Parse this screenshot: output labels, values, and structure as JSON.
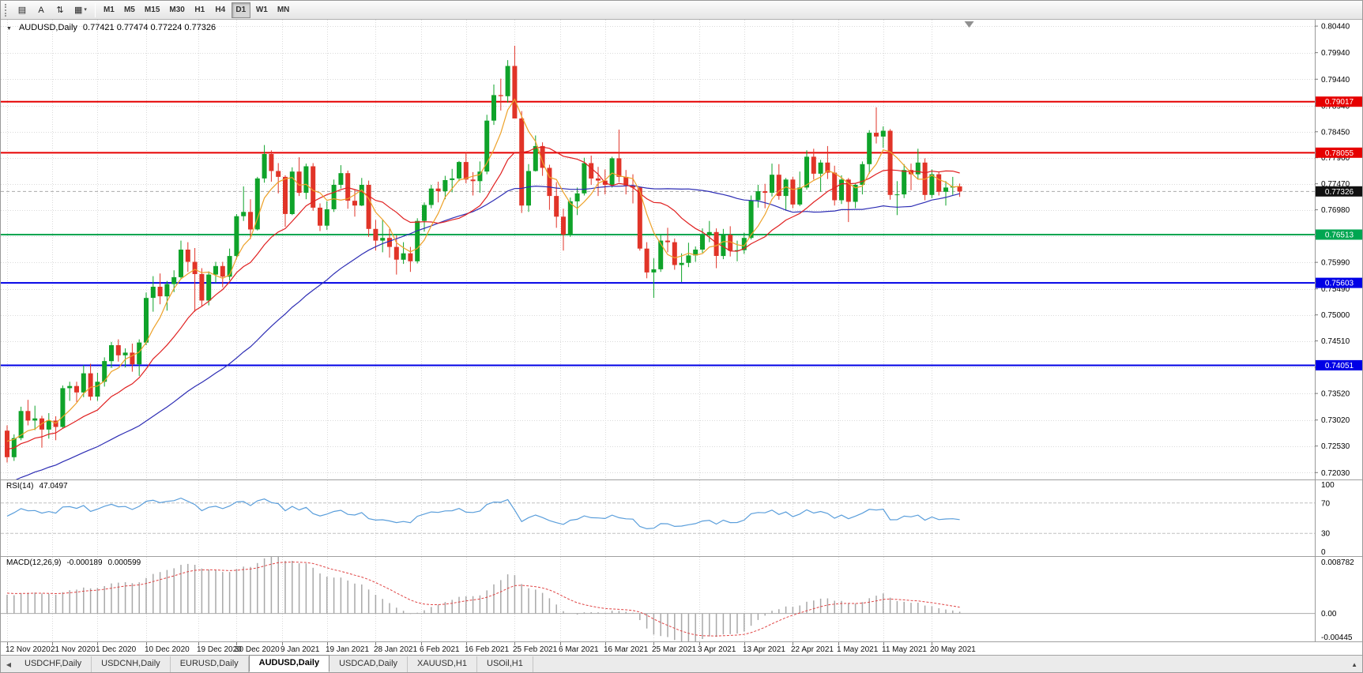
{
  "toolbar": {
    "tool_buttons": [
      {
        "name": "chart-window-icon",
        "glyph": "▤"
      },
      {
        "name": "text-annotation-tool",
        "glyph": "A"
      },
      {
        "name": "chart-shift-tool-icon",
        "glyph": "⇅"
      },
      {
        "name": "indicators-menu-icon",
        "glyph": "▦",
        "caret": "▾"
      }
    ],
    "timeframes": [
      "M1",
      "M5",
      "M15",
      "M30",
      "H1",
      "H4",
      "D1",
      "W1",
      "MN"
    ],
    "active_timeframe": "D1"
  },
  "chart_header": {
    "symbol": "AUDUSD,Daily",
    "ohlc": "0.77421 0.77474 0.77224 0.77326",
    "dropdown_glyph": "▼"
  },
  "rsi_header": {
    "name": "RSI(14)",
    "value": "47.0497"
  },
  "macd_header": {
    "name": "MACD(12,26,9)",
    "value_main": "-0.000189",
    "value_signal": "0.000599"
  },
  "tabs": {
    "scroll_left_glyph": "◀",
    "list_glyph": "▲",
    "items": [
      "USDCHF,Daily",
      "USDCNH,Daily",
      "EURUSD,Daily",
      "AUDUSD,Daily",
      "USDCAD,Daily",
      "XAUUSD,H1",
      "USOil,H1"
    ],
    "active": "AUDUSD,Daily"
  },
  "chart_data": {
    "type": "candlestick",
    "symbol": "AUDUSD",
    "timeframe": "Daily",
    "last_quote": {
      "open": 0.77421,
      "high": 0.77474,
      "low": 0.77224,
      "close": 0.77326
    },
    "ylim": [
      0.719,
      0.8056
    ],
    "colors": {
      "bull": "#0fa32a",
      "bear": "#e13428",
      "grid": "#dadada",
      "rsi": "#5a9edb",
      "macd_bar": "#a8a8a8",
      "macd_signal": "#e04444"
    },
    "y_axis_ticks": [
      "0.80440",
      "0.79940",
      "0.79440",
      "0.78940",
      "0.78450",
      "0.77960",
      "0.77470",
      "0.76980",
      "0.76480",
      "0.75990",
      "0.75490",
      "0.75000",
      "0.74510",
      "0.74010",
      "0.73520",
      "0.73020",
      "0.72530",
      "0.72030"
    ],
    "horizontal_lines": [
      {
        "price": 0.79017,
        "label": "0.79017",
        "color": "#e60000"
      },
      {
        "price": 0.78055,
        "label": "0.78055",
        "color": "#e60000"
      },
      {
        "price": 0.76513,
        "label": "0.76513",
        "color": "#00a651"
      },
      {
        "price": 0.75603,
        "label": "0.75603",
        "color": "#0000e6"
      },
      {
        "price": 0.74051,
        "label": "0.74051",
        "color": "#0000e6"
      }
    ],
    "current_price": {
      "price": 0.77326,
      "label": "0.77326",
      "box_color": "#111111"
    },
    "moving_averages": [
      {
        "name": "ma-fast",
        "type": "sma",
        "period": 5,
        "color": "#eda128"
      },
      {
        "name": "ma-medium",
        "type": "sma",
        "period": 14,
        "color": "#e02020"
      },
      {
        "name": "ma-slow",
        "type": "sma",
        "period": 40,
        "color": "#2d2db4"
      }
    ],
    "rsi": {
      "period": 14,
      "current": "47.0497",
      "levels": [
        "100",
        "70",
        "30",
        "0"
      ],
      "dashed_levels": [
        70,
        30
      ]
    },
    "macd": {
      "fast": 12,
      "slow": 26,
      "signal": 9,
      "axis_labels": [
        "0.008782",
        "0.00",
        "-0.00445"
      ],
      "range": [
        -0.00445,
        0.008782
      ]
    },
    "date_labels": [
      {
        "text": "12 Nov 2020",
        "i": 0
      },
      {
        "text": "21 Nov 2020",
        "i": 6.5
      },
      {
        "text": "1 Dec 2020",
        "i": 13
      },
      {
        "text": "10 Dec 2020",
        "i": 20
      },
      {
        "text": "19 Dec 2020",
        "i": 27.5
      },
      {
        "text": "30 Dec 2020",
        "i": 33
      },
      {
        "text": "9 Jan 2021",
        "i": 39.5
      },
      {
        "text": "19 Jan 2021",
        "i": 46
      },
      {
        "text": "28 Jan 2021",
        "i": 53
      },
      {
        "text": "6 Feb 2021",
        "i": 59.5
      },
      {
        "text": "16 Feb 2021",
        "i": 66
      },
      {
        "text": "25 Feb 2021",
        "i": 73
      },
      {
        "text": "6 Mar 2021",
        "i": 79.5
      },
      {
        "text": "16 Mar 2021",
        "i": 86
      },
      {
        "text": "25 Mar 2021",
        "i": 93
      },
      {
        "text": "3 Apr 2021",
        "i": 99.5
      },
      {
        "text": "13 Apr 2021",
        "i": 106
      },
      {
        "text": "22 Apr 2021",
        "i": 113
      },
      {
        "text": "1 May 2021",
        "i": 119.5
      },
      {
        "text": "11 May 2021",
        "i": 126
      },
      {
        "text": "20 May 2021",
        "i": 133
      }
    ],
    "candles": [
      [
        0.7282,
        0.7292,
        0.7222,
        0.7232
      ],
      [
        0.7232,
        0.7275,
        0.7225,
        0.7268
      ],
      [
        0.7268,
        0.7327,
        0.7264,
        0.7319
      ],
      [
        0.7319,
        0.734,
        0.7292,
        0.7301
      ],
      [
        0.7301,
        0.7329,
        0.7283,
        0.7305
      ],
      [
        0.7305,
        0.731,
        0.725,
        0.7284
      ],
      [
        0.7284,
        0.7315,
        0.7267,
        0.7301
      ],
      [
        0.7301,
        0.7309,
        0.7264,
        0.7289
      ],
      [
        0.7289,
        0.7367,
        0.7287,
        0.7362
      ],
      [
        0.7362,
        0.7374,
        0.7338,
        0.7366
      ],
      [
        0.7366,
        0.7374,
        0.7336,
        0.7354
      ],
      [
        0.7354,
        0.7405,
        0.7345,
        0.739
      ],
      [
        0.739,
        0.7408,
        0.7339,
        0.7346
      ],
      [
        0.7346,
        0.7391,
        0.7338,
        0.7374
      ],
      [
        0.7374,
        0.742,
        0.7365,
        0.7413
      ],
      [
        0.7413,
        0.7449,
        0.74,
        0.7443
      ],
      [
        0.7443,
        0.7454,
        0.7412,
        0.7424
      ],
      [
        0.7424,
        0.7437,
        0.7401,
        0.7429
      ],
      [
        0.7429,
        0.7446,
        0.7393,
        0.7407
      ],
      [
        0.7407,
        0.7454,
        0.7385,
        0.7448
      ],
      [
        0.7448,
        0.7542,
        0.7443,
        0.7532
      ],
      [
        0.7532,
        0.7573,
        0.7506,
        0.7553
      ],
      [
        0.7553,
        0.7578,
        0.752,
        0.7535
      ],
      [
        0.7535,
        0.7564,
        0.7508,
        0.7558
      ],
      [
        0.7558,
        0.7584,
        0.7543,
        0.7571
      ],
      [
        0.7571,
        0.764,
        0.7568,
        0.7623
      ],
      [
        0.7623,
        0.7637,
        0.7581,
        0.76
      ],
      [
        0.76,
        0.7626,
        0.7506,
        0.7577
      ],
      [
        0.7577,
        0.7588,
        0.7516,
        0.7527
      ],
      [
        0.7527,
        0.7582,
        0.7518,
        0.7576
      ],
      [
        0.7576,
        0.76,
        0.756,
        0.7592
      ],
      [
        0.7592,
        0.76,
        0.7552,
        0.7572
      ],
      [
        0.7572,
        0.7625,
        0.7565,
        0.7611
      ],
      [
        0.7611,
        0.769,
        0.7605,
        0.7686
      ],
      [
        0.7686,
        0.7742,
        0.7677,
        0.7694
      ],
      [
        0.7694,
        0.7718,
        0.7643,
        0.7661
      ],
      [
        0.7661,
        0.776,
        0.7659,
        0.7757
      ],
      [
        0.7757,
        0.782,
        0.7749,
        0.7803
      ],
      [
        0.7803,
        0.781,
        0.7751,
        0.7771
      ],
      [
        0.7771,
        0.7786,
        0.7729,
        0.776
      ],
      [
        0.776,
        0.7763,
        0.7666,
        0.769
      ],
      [
        0.769,
        0.7778,
        0.7688,
        0.777
      ],
      [
        0.777,
        0.7797,
        0.7724,
        0.773
      ],
      [
        0.773,
        0.7785,
        0.7718,
        0.778
      ],
      [
        0.778,
        0.7786,
        0.7696,
        0.7702
      ],
      [
        0.7702,
        0.771,
        0.7658,
        0.7668
      ],
      [
        0.7668,
        0.7714,
        0.766,
        0.7699
      ],
      [
        0.7699,
        0.7755,
        0.7694,
        0.7745
      ],
      [
        0.7745,
        0.7782,
        0.7738,
        0.7767
      ],
      [
        0.7767,
        0.7772,
        0.77,
        0.7715
      ],
      [
        0.7715,
        0.7736,
        0.7685,
        0.7706
      ],
      [
        0.7706,
        0.7758,
        0.7705,
        0.7745
      ],
      [
        0.7745,
        0.7753,
        0.7647,
        0.7662
      ],
      [
        0.7662,
        0.7679,
        0.7621,
        0.764
      ],
      [
        0.764,
        0.7679,
        0.7618,
        0.7645
      ],
      [
        0.7645,
        0.7662,
        0.7608,
        0.7628
      ],
      [
        0.7628,
        0.765,
        0.7576,
        0.7604
      ],
      [
        0.7604,
        0.7637,
        0.7596,
        0.7616
      ],
      [
        0.7616,
        0.7628,
        0.7581,
        0.7601
      ],
      [
        0.7601,
        0.7682,
        0.7597,
        0.7677
      ],
      [
        0.7677,
        0.7712,
        0.7657,
        0.7707
      ],
      [
        0.7707,
        0.7745,
        0.7701,
        0.7738
      ],
      [
        0.7738,
        0.7751,
        0.7712,
        0.7733
      ],
      [
        0.7733,
        0.7762,
        0.7718,
        0.7754
      ],
      [
        0.7754,
        0.7775,
        0.7731,
        0.7757
      ],
      [
        0.7757,
        0.779,
        0.7752,
        0.7788
      ],
      [
        0.7788,
        0.7806,
        0.7748,
        0.7755
      ],
      [
        0.7755,
        0.7769,
        0.7725,
        0.7752
      ],
      [
        0.7752,
        0.7789,
        0.773,
        0.777
      ],
      [
        0.777,
        0.7877,
        0.7765,
        0.7866
      ],
      [
        0.7866,
        0.7934,
        0.7858,
        0.7914
      ],
      [
        0.7914,
        0.7945,
        0.7885,
        0.7912
      ],
      [
        0.7912,
        0.798,
        0.79,
        0.7969
      ],
      [
        0.7969,
        0.8007,
        0.7946,
        0.787
      ],
      [
        0.787,
        0.7884,
        0.7692,
        0.7706
      ],
      [
        0.7706,
        0.7784,
        0.7694,
        0.7771
      ],
      [
        0.7771,
        0.7838,
        0.777,
        0.7818
      ],
      [
        0.7818,
        0.7825,
        0.7762,
        0.7777
      ],
      [
        0.7777,
        0.7783,
        0.7698,
        0.7724
      ],
      [
        0.7724,
        0.775,
        0.7664,
        0.7685
      ],
      [
        0.7685,
        0.77,
        0.7621,
        0.7651
      ],
      [
        0.7651,
        0.7721,
        0.7647,
        0.7714
      ],
      [
        0.7714,
        0.774,
        0.7688,
        0.7729
      ],
      [
        0.7729,
        0.7796,
        0.7725,
        0.7786
      ],
      [
        0.7786,
        0.78,
        0.7745,
        0.7757
      ],
      [
        0.7757,
        0.7779,
        0.7724,
        0.7753
      ],
      [
        0.7753,
        0.7774,
        0.7727,
        0.7745
      ],
      [
        0.7745,
        0.7798,
        0.774,
        0.7795
      ],
      [
        0.7795,
        0.7849,
        0.775,
        0.776
      ],
      [
        0.776,
        0.7773,
        0.7727,
        0.7744
      ],
      [
        0.7744,
        0.7765,
        0.771,
        0.774
      ],
      [
        0.774,
        0.7742,
        0.7621,
        0.7625
      ],
      [
        0.7625,
        0.7637,
        0.7569,
        0.758
      ],
      [
        0.758,
        0.7607,
        0.7532,
        0.7586
      ],
      [
        0.7586,
        0.7651,
        0.7581,
        0.764
      ],
      [
        0.764,
        0.7664,
        0.7618,
        0.7637
      ],
      [
        0.7637,
        0.7644,
        0.7585,
        0.7594
      ],
      [
        0.7594,
        0.7616,
        0.7562,
        0.7598
      ],
      [
        0.7598,
        0.7636,
        0.759,
        0.7612
      ],
      [
        0.7612,
        0.7629,
        0.76,
        0.7623
      ],
      [
        0.7623,
        0.7663,
        0.7617,
        0.765
      ],
      [
        0.765,
        0.7677,
        0.7637,
        0.7656
      ],
      [
        0.7656,
        0.7663,
        0.7588,
        0.7611
      ],
      [
        0.7611,
        0.7662,
        0.7605,
        0.7651
      ],
      [
        0.7651,
        0.7667,
        0.761,
        0.7621
      ],
      [
        0.7621,
        0.764,
        0.7601,
        0.7622
      ],
      [
        0.7622,
        0.7655,
        0.7615,
        0.7645
      ],
      [
        0.7645,
        0.7725,
        0.7642,
        0.7716
      ],
      [
        0.7716,
        0.7745,
        0.7702,
        0.7733
      ],
      [
        0.7733,
        0.7747,
        0.7701,
        0.773
      ],
      [
        0.773,
        0.7785,
        0.7723,
        0.7764
      ],
      [
        0.7764,
        0.7784,
        0.7717,
        0.7724
      ],
      [
        0.7724,
        0.7758,
        0.7697,
        0.7755
      ],
      [
        0.7755,
        0.776,
        0.7701,
        0.7708
      ],
      [
        0.7708,
        0.777,
        0.7705,
        0.774
      ],
      [
        0.774,
        0.781,
        0.7736,
        0.7798
      ],
      [
        0.7798,
        0.7813,
        0.7755,
        0.7766
      ],
      [
        0.7766,
        0.7792,
        0.7732,
        0.7787
      ],
      [
        0.7787,
        0.7818,
        0.7756,
        0.7768
      ],
      [
        0.7768,
        0.7781,
        0.7706,
        0.7716
      ],
      [
        0.7716,
        0.7763,
        0.7709,
        0.7755
      ],
      [
        0.7755,
        0.7758,
        0.7675,
        0.7713
      ],
      [
        0.7713,
        0.7748,
        0.7701,
        0.7745
      ],
      [
        0.7745,
        0.7789,
        0.7727,
        0.7784
      ],
      [
        0.7784,
        0.7848,
        0.7766,
        0.7843
      ],
      [
        0.7843,
        0.7891,
        0.7823,
        0.7836
      ],
      [
        0.7836,
        0.7855,
        0.7815,
        0.7847
      ],
      [
        0.7847,
        0.785,
        0.7717,
        0.7726
      ],
      [
        0.7726,
        0.7752,
        0.7688,
        0.7727
      ],
      [
        0.7727,
        0.7784,
        0.772,
        0.7773
      ],
      [
        0.7773,
        0.7785,
        0.7735,
        0.7765
      ],
      [
        0.7765,
        0.7813,
        0.7755,
        0.7787
      ],
      [
        0.7787,
        0.7795,
        0.7716,
        0.7726
      ],
      [
        0.7726,
        0.7774,
        0.772,
        0.7765
      ],
      [
        0.7765,
        0.777,
        0.7725,
        0.7732
      ],
      [
        0.7732,
        0.7752,
        0.7706,
        0.774
      ],
      [
        0.774,
        0.776,
        0.7726,
        0.77421
      ],
      [
        0.77421,
        0.77474,
        0.77224,
        0.77326
      ]
    ]
  }
}
